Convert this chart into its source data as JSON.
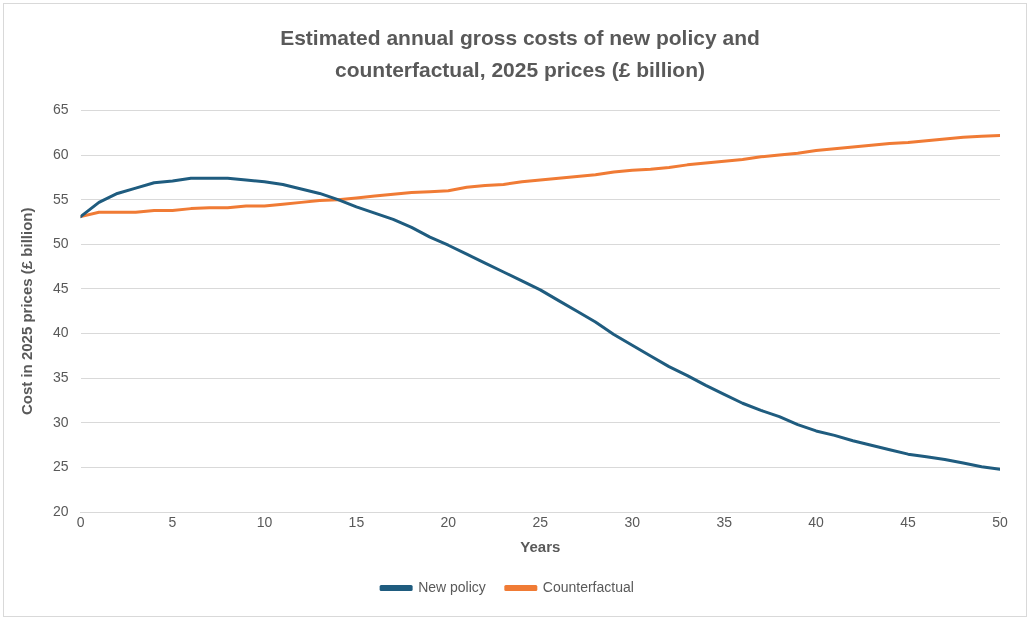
{
  "chart_data": {
    "type": "line",
    "title": "Estimated annual gross costs of new policy and counterfactual, 2025 prices (£ billion)",
    "xlabel": "Years",
    "ylabel": "Cost in 2025 prices (£ billion)",
    "x": [
      0,
      1,
      2,
      3,
      4,
      5,
      6,
      7,
      8,
      9,
      10,
      11,
      12,
      13,
      14,
      15,
      16,
      17,
      18,
      19,
      20,
      21,
      22,
      23,
      24,
      25,
      26,
      27,
      28,
      29,
      30,
      31,
      32,
      33,
      34,
      35,
      36,
      37,
      38,
      39,
      40,
      41,
      42,
      43,
      44,
      45,
      46,
      47,
      48,
      49,
      50
    ],
    "series": [
      {
        "name": "New policy",
        "color": "#1f5c7f",
        "values": [
          53.1,
          54.7,
          55.7,
          56.3,
          56.9,
          57.1,
          57.4,
          57.4,
          57.4,
          57.2,
          57.0,
          56.7,
          56.2,
          55.7,
          55.0,
          54.2,
          53.5,
          52.8,
          51.9,
          50.8,
          49.9,
          48.9,
          47.9,
          46.9,
          45.9,
          44.9,
          43.7,
          42.5,
          41.3,
          39.9,
          38.7,
          37.5,
          36.3,
          35.3,
          34.2,
          33.2,
          32.2,
          31.4,
          30.7,
          29.8,
          29.1,
          28.6,
          28.0,
          27.5,
          27.0,
          26.5,
          26.2,
          25.9,
          25.5,
          25.1,
          24.8
        ]
      },
      {
        "name": "Counterfactual",
        "color": "#f07b35",
        "values": [
          53.1,
          53.6,
          53.6,
          53.6,
          53.8,
          53.8,
          54.0,
          54.1,
          54.1,
          54.3,
          54.3,
          54.5,
          54.7,
          54.9,
          55.0,
          55.2,
          55.4,
          55.6,
          55.8,
          55.9,
          56.0,
          56.4,
          56.6,
          56.7,
          57.0,
          57.2,
          57.4,
          57.6,
          57.8,
          58.1,
          58.3,
          58.4,
          58.6,
          58.9,
          59.1,
          59.3,
          59.5,
          59.8,
          60.0,
          60.2,
          60.5,
          60.7,
          60.9,
          61.1,
          61.3,
          61.4,
          61.6,
          61.8,
          62.0,
          62.1,
          62.2
        ]
      }
    ],
    "xlim": [
      0,
      50
    ],
    "xticks": [
      0,
      5,
      10,
      15,
      20,
      25,
      30,
      35,
      40,
      45,
      50
    ],
    "ylim": [
      20,
      65
    ],
    "yticks": [
      20,
      25,
      30,
      35,
      40,
      45,
      50,
      55,
      60,
      65
    ],
    "grid": "y",
    "legend": "bottom",
    "marker": "none",
    "line_style": "solid"
  }
}
